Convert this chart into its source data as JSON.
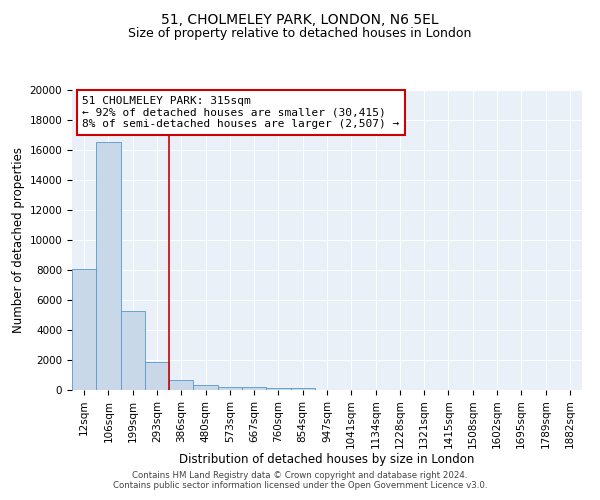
{
  "title1": "51, CHOLMELEY PARK, LONDON, N6 5EL",
  "title2": "Size of property relative to detached houses in London",
  "xlabel": "Distribution of detached houses by size in London",
  "ylabel": "Number of detached properties",
  "categories": [
    "12sqm",
    "106sqm",
    "199sqm",
    "293sqm",
    "386sqm",
    "480sqm",
    "573sqm",
    "667sqm",
    "760sqm",
    "854sqm",
    "947sqm",
    "1041sqm",
    "1134sqm",
    "1228sqm",
    "1321sqm",
    "1415sqm",
    "1508sqm",
    "1602sqm",
    "1695sqm",
    "1789sqm",
    "1882sqm"
  ],
  "values": [
    8100,
    16500,
    5300,
    1850,
    700,
    320,
    230,
    190,
    160,
    120,
    0,
    0,
    0,
    0,
    0,
    0,
    0,
    0,
    0,
    0,
    0
  ],
  "bar_color": "#c8d8e8",
  "bar_edge_color": "#5599cc",
  "vline_x": 3.5,
  "vline_color": "#cc0000",
  "annotation_line1": "51 CHOLMELEY PARK: 315sqm",
  "annotation_line2": "← 92% of detached houses are smaller (30,415)",
  "annotation_line3": "8% of semi-detached houses are larger (2,507) →",
  "annotation_box_color": "white",
  "annotation_box_edge": "#cc0000",
  "ylim": [
    0,
    20000
  ],
  "yticks": [
    0,
    2000,
    4000,
    6000,
    8000,
    10000,
    12000,
    14000,
    16000,
    18000,
    20000
  ],
  "bg_color": "#eaf0f8",
  "footer": "Contains HM Land Registry data © Crown copyright and database right 2024.\nContains public sector information licensed under the Open Government Licence v3.0.",
  "title1_fontsize": 10,
  "title2_fontsize": 9,
  "annot_fontsize": 8,
  "xlabel_fontsize": 8.5,
  "ylabel_fontsize": 8.5,
  "tick_fontsize": 7.5
}
